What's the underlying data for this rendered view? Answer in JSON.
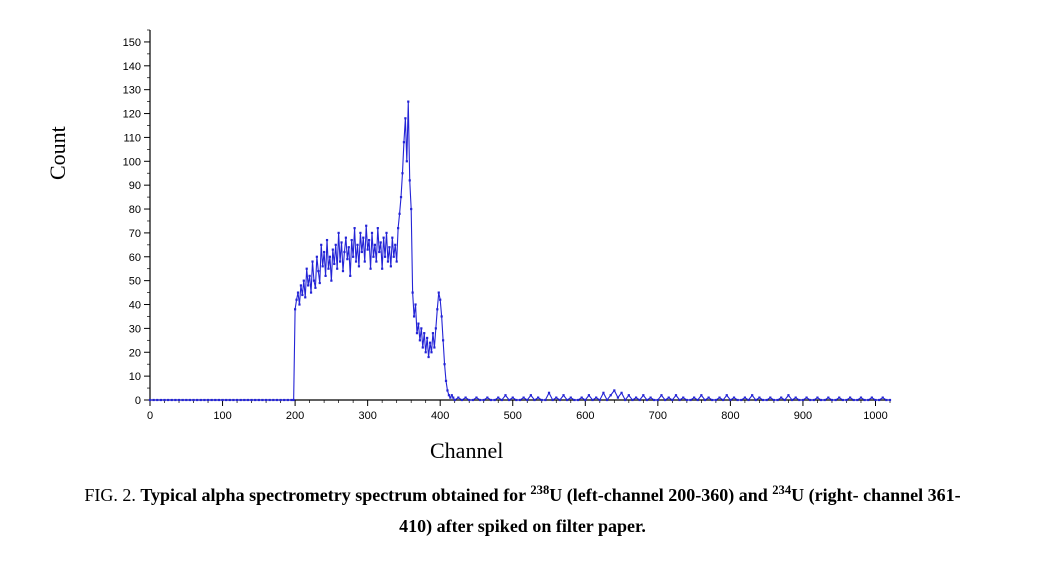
{
  "chart": {
    "type": "line-scatter",
    "xlabel": "Channel",
    "ylabel": "Count",
    "label_fontsize": 22,
    "xlim": [
      0,
      1020
    ],
    "ylim": [
      0,
      155
    ],
    "xtick_step": 100,
    "xticks": [
      0,
      100,
      200,
      300,
      400,
      500,
      600,
      700,
      800,
      900,
      1000
    ],
    "ytick_step": 10,
    "yticks": [
      0,
      10,
      20,
      30,
      40,
      50,
      60,
      70,
      80,
      90,
      100,
      110,
      120,
      130,
      140,
      150
    ],
    "tick_fontsize": 11,
    "minor_ticks_x": 5,
    "minor_ticks_y": 2,
    "line_color": "#2424d6",
    "marker_color": "#2424d6",
    "marker_size": 2.2,
    "line_width": 1.1,
    "axis_color": "#000000",
    "background_color": "#ffffff",
    "series": [
      {
        "x": 0,
        "y": 0
      },
      {
        "x": 5,
        "y": 0
      },
      {
        "x": 10,
        "y": 0
      },
      {
        "x": 15,
        "y": 0
      },
      {
        "x": 20,
        "y": 0
      },
      {
        "x": 25,
        "y": 0
      },
      {
        "x": 30,
        "y": 0
      },
      {
        "x": 35,
        "y": 0
      },
      {
        "x": 40,
        "y": 0
      },
      {
        "x": 45,
        "y": 0
      },
      {
        "x": 50,
        "y": 0
      },
      {
        "x": 55,
        "y": 0
      },
      {
        "x": 60,
        "y": 0
      },
      {
        "x": 65,
        "y": 0
      },
      {
        "x": 70,
        "y": 0
      },
      {
        "x": 75,
        "y": 0
      },
      {
        "x": 80,
        "y": 0
      },
      {
        "x": 85,
        "y": 0
      },
      {
        "x": 90,
        "y": 0
      },
      {
        "x": 95,
        "y": 0
      },
      {
        "x": 100,
        "y": 0
      },
      {
        "x": 105,
        "y": 0
      },
      {
        "x": 110,
        "y": 0
      },
      {
        "x": 115,
        "y": 0
      },
      {
        "x": 120,
        "y": 0
      },
      {
        "x": 125,
        "y": 0
      },
      {
        "x": 130,
        "y": 0
      },
      {
        "x": 135,
        "y": 0
      },
      {
        "x": 140,
        "y": 0
      },
      {
        "x": 145,
        "y": 0
      },
      {
        "x": 150,
        "y": 0
      },
      {
        "x": 155,
        "y": 0
      },
      {
        "x": 160,
        "y": 0
      },
      {
        "x": 165,
        "y": 0
      },
      {
        "x": 170,
        "y": 0
      },
      {
        "x": 175,
        "y": 0
      },
      {
        "x": 180,
        "y": 0
      },
      {
        "x": 185,
        "y": 0
      },
      {
        "x": 190,
        "y": 0
      },
      {
        "x": 195,
        "y": 0
      },
      {
        "x": 198,
        "y": 0
      },
      {
        "x": 200,
        "y": 38
      },
      {
        "x": 202,
        "y": 42
      },
      {
        "x": 204,
        "y": 45
      },
      {
        "x": 206,
        "y": 40
      },
      {
        "x": 208,
        "y": 48
      },
      {
        "x": 210,
        "y": 44
      },
      {
        "x": 212,
        "y": 50
      },
      {
        "x": 214,
        "y": 43
      },
      {
        "x": 216,
        "y": 55
      },
      {
        "x": 218,
        "y": 48
      },
      {
        "x": 220,
        "y": 52
      },
      {
        "x": 222,
        "y": 45
      },
      {
        "x": 224,
        "y": 58
      },
      {
        "x": 226,
        "y": 50
      },
      {
        "x": 228,
        "y": 47
      },
      {
        "x": 230,
        "y": 60
      },
      {
        "x": 232,
        "y": 54
      },
      {
        "x": 234,
        "y": 49
      },
      {
        "x": 236,
        "y": 65
      },
      {
        "x": 238,
        "y": 56
      },
      {
        "x": 240,
        "y": 62
      },
      {
        "x": 242,
        "y": 52
      },
      {
        "x": 244,
        "y": 67
      },
      {
        "x": 246,
        "y": 55
      },
      {
        "x": 248,
        "y": 60
      },
      {
        "x": 250,
        "y": 50
      },
      {
        "x": 252,
        "y": 63
      },
      {
        "x": 254,
        "y": 57
      },
      {
        "x": 256,
        "y": 65
      },
      {
        "x": 258,
        "y": 55
      },
      {
        "x": 260,
        "y": 70
      },
      {
        "x": 262,
        "y": 58
      },
      {
        "x": 264,
        "y": 66
      },
      {
        "x": 266,
        "y": 54
      },
      {
        "x": 268,
        "y": 62
      },
      {
        "x": 270,
        "y": 68
      },
      {
        "x": 272,
        "y": 59
      },
      {
        "x": 274,
        "y": 64
      },
      {
        "x": 276,
        "y": 52
      },
      {
        "x": 278,
        "y": 67
      },
      {
        "x": 280,
        "y": 60
      },
      {
        "x": 282,
        "y": 72
      },
      {
        "x": 284,
        "y": 58
      },
      {
        "x": 286,
        "y": 65
      },
      {
        "x": 288,
        "y": 56
      },
      {
        "x": 290,
        "y": 70
      },
      {
        "x": 292,
        "y": 62
      },
      {
        "x": 294,
        "y": 68
      },
      {
        "x": 296,
        "y": 58
      },
      {
        "x": 298,
        "y": 73
      },
      {
        "x": 300,
        "y": 63
      },
      {
        "x": 302,
        "y": 67
      },
      {
        "x": 304,
        "y": 55
      },
      {
        "x": 306,
        "y": 70
      },
      {
        "x": 308,
        "y": 60
      },
      {
        "x": 310,
        "y": 65
      },
      {
        "x": 312,
        "y": 58
      },
      {
        "x": 314,
        "y": 72
      },
      {
        "x": 316,
        "y": 62
      },
      {
        "x": 318,
        "y": 66
      },
      {
        "x": 320,
        "y": 55
      },
      {
        "x": 322,
        "y": 68
      },
      {
        "x": 324,
        "y": 60
      },
      {
        "x": 326,
        "y": 70
      },
      {
        "x": 328,
        "y": 58
      },
      {
        "x": 330,
        "y": 64
      },
      {
        "x": 332,
        "y": 56
      },
      {
        "x": 334,
        "y": 68
      },
      {
        "x": 336,
        "y": 60
      },
      {
        "x": 338,
        "y": 65
      },
      {
        "x": 340,
        "y": 58
      },
      {
        "x": 342,
        "y": 72
      },
      {
        "x": 344,
        "y": 78
      },
      {
        "x": 346,
        "y": 85
      },
      {
        "x": 348,
        "y": 95
      },
      {
        "x": 350,
        "y": 108
      },
      {
        "x": 352,
        "y": 118
      },
      {
        "x": 354,
        "y": 100
      },
      {
        "x": 356,
        "y": 125
      },
      {
        "x": 358,
        "y": 92
      },
      {
        "x": 360,
        "y": 80
      },
      {
        "x": 362,
        "y": 45
      },
      {
        "x": 364,
        "y": 35
      },
      {
        "x": 366,
        "y": 40
      },
      {
        "x": 368,
        "y": 28
      },
      {
        "x": 370,
        "y": 32
      },
      {
        "x": 372,
        "y": 25
      },
      {
        "x": 374,
        "y": 30
      },
      {
        "x": 376,
        "y": 22
      },
      {
        "x": 378,
        "y": 28
      },
      {
        "x": 380,
        "y": 20
      },
      {
        "x": 382,
        "y": 26
      },
      {
        "x": 384,
        "y": 18
      },
      {
        "x": 386,
        "y": 24
      },
      {
        "x": 388,
        "y": 20
      },
      {
        "x": 390,
        "y": 28
      },
      {
        "x": 392,
        "y": 22
      },
      {
        "x": 394,
        "y": 30
      },
      {
        "x": 396,
        "y": 38
      },
      {
        "x": 398,
        "y": 45
      },
      {
        "x": 400,
        "y": 42
      },
      {
        "x": 402,
        "y": 35
      },
      {
        "x": 404,
        "y": 25
      },
      {
        "x": 406,
        "y": 15
      },
      {
        "x": 408,
        "y": 8
      },
      {
        "x": 410,
        "y": 4
      },
      {
        "x": 412,
        "y": 2
      },
      {
        "x": 414,
        "y": 1
      },
      {
        "x": 416,
        "y": 2
      },
      {
        "x": 418,
        "y": 1
      },
      {
        "x": 420,
        "y": 0
      },
      {
        "x": 425,
        "y": 1
      },
      {
        "x": 430,
        "y": 0
      },
      {
        "x": 435,
        "y": 1
      },
      {
        "x": 440,
        "y": 0
      },
      {
        "x": 445,
        "y": 0
      },
      {
        "x": 450,
        "y": 1
      },
      {
        "x": 455,
        "y": 0
      },
      {
        "x": 460,
        "y": 0
      },
      {
        "x": 465,
        "y": 1
      },
      {
        "x": 470,
        "y": 0
      },
      {
        "x": 475,
        "y": 0
      },
      {
        "x": 480,
        "y": 1
      },
      {
        "x": 485,
        "y": 0
      },
      {
        "x": 490,
        "y": 2
      },
      {
        "x": 495,
        "y": 0
      },
      {
        "x": 500,
        "y": 1
      },
      {
        "x": 505,
        "y": 0
      },
      {
        "x": 510,
        "y": 0
      },
      {
        "x": 515,
        "y": 1
      },
      {
        "x": 520,
        "y": 0
      },
      {
        "x": 525,
        "y": 2
      },
      {
        "x": 530,
        "y": 0
      },
      {
        "x": 535,
        "y": 1
      },
      {
        "x": 540,
        "y": 0
      },
      {
        "x": 545,
        "y": 0
      },
      {
        "x": 550,
        "y": 3
      },
      {
        "x": 555,
        "y": 0
      },
      {
        "x": 560,
        "y": 1
      },
      {
        "x": 565,
        "y": 0
      },
      {
        "x": 570,
        "y": 2
      },
      {
        "x": 575,
        "y": 0
      },
      {
        "x": 580,
        "y": 1
      },
      {
        "x": 585,
        "y": 0
      },
      {
        "x": 590,
        "y": 0
      },
      {
        "x": 595,
        "y": 1
      },
      {
        "x": 600,
        "y": 0
      },
      {
        "x": 605,
        "y": 2
      },
      {
        "x": 610,
        "y": 0
      },
      {
        "x": 615,
        "y": 1
      },
      {
        "x": 620,
        "y": 0
      },
      {
        "x": 625,
        "y": 3
      },
      {
        "x": 630,
        "y": 0
      },
      {
        "x": 635,
        "y": 2
      },
      {
        "x": 640,
        "y": 4
      },
      {
        "x": 645,
        "y": 1
      },
      {
        "x": 650,
        "y": 3
      },
      {
        "x": 655,
        "y": 0
      },
      {
        "x": 660,
        "y": 2
      },
      {
        "x": 665,
        "y": 0
      },
      {
        "x": 670,
        "y": 1
      },
      {
        "x": 675,
        "y": 0
      },
      {
        "x": 680,
        "y": 2
      },
      {
        "x": 685,
        "y": 0
      },
      {
        "x": 690,
        "y": 1
      },
      {
        "x": 695,
        "y": 0
      },
      {
        "x": 700,
        "y": 0
      },
      {
        "x": 705,
        "y": 2
      },
      {
        "x": 710,
        "y": 0
      },
      {
        "x": 715,
        "y": 1
      },
      {
        "x": 720,
        "y": 0
      },
      {
        "x": 725,
        "y": 2
      },
      {
        "x": 730,
        "y": 0
      },
      {
        "x": 735,
        "y": 1
      },
      {
        "x": 740,
        "y": 0
      },
      {
        "x": 745,
        "y": 0
      },
      {
        "x": 750,
        "y": 1
      },
      {
        "x": 755,
        "y": 0
      },
      {
        "x": 760,
        "y": 2
      },
      {
        "x": 765,
        "y": 0
      },
      {
        "x": 770,
        "y": 1
      },
      {
        "x": 775,
        "y": 0
      },
      {
        "x": 780,
        "y": 0
      },
      {
        "x": 785,
        "y": 1
      },
      {
        "x": 790,
        "y": 0
      },
      {
        "x": 795,
        "y": 2
      },
      {
        "x": 800,
        "y": 0
      },
      {
        "x": 805,
        "y": 1
      },
      {
        "x": 810,
        "y": 0
      },
      {
        "x": 815,
        "y": 0
      },
      {
        "x": 820,
        "y": 1
      },
      {
        "x": 825,
        "y": 0
      },
      {
        "x": 830,
        "y": 2
      },
      {
        "x": 835,
        "y": 0
      },
      {
        "x": 840,
        "y": 1
      },
      {
        "x": 845,
        "y": 0
      },
      {
        "x": 850,
        "y": 0
      },
      {
        "x": 855,
        "y": 1
      },
      {
        "x": 860,
        "y": 0
      },
      {
        "x": 865,
        "y": 0
      },
      {
        "x": 870,
        "y": 1
      },
      {
        "x": 875,
        "y": 0
      },
      {
        "x": 880,
        "y": 2
      },
      {
        "x": 885,
        "y": 0
      },
      {
        "x": 890,
        "y": 1
      },
      {
        "x": 895,
        "y": 0
      },
      {
        "x": 900,
        "y": 0
      },
      {
        "x": 905,
        "y": 1
      },
      {
        "x": 910,
        "y": 0
      },
      {
        "x": 915,
        "y": 0
      },
      {
        "x": 920,
        "y": 1
      },
      {
        "x": 925,
        "y": 0
      },
      {
        "x": 930,
        "y": 0
      },
      {
        "x": 935,
        "y": 1
      },
      {
        "x": 940,
        "y": 0
      },
      {
        "x": 945,
        "y": 0
      },
      {
        "x": 950,
        "y": 1
      },
      {
        "x": 955,
        "y": 0
      },
      {
        "x": 960,
        "y": 0
      },
      {
        "x": 965,
        "y": 1
      },
      {
        "x": 970,
        "y": 0
      },
      {
        "x": 975,
        "y": 0
      },
      {
        "x": 980,
        "y": 1
      },
      {
        "x": 985,
        "y": 0
      },
      {
        "x": 990,
        "y": 0
      },
      {
        "x": 995,
        "y": 1
      },
      {
        "x": 1000,
        "y": 0
      },
      {
        "x": 1005,
        "y": 0
      },
      {
        "x": 1010,
        "y": 1
      },
      {
        "x": 1015,
        "y": 0
      },
      {
        "x": 1020,
        "y": 0
      }
    ]
  },
  "caption": {
    "fig_prefix": "FIG. 2. ",
    "line1_a": "Typical alpha spectrometry spectrum obtained for ",
    "isotope1_sup": "238",
    "isotope1": "U",
    "line1_b": " (left-channel 200-360) and ",
    "isotope2_sup": "234",
    "isotope2": "U",
    "line1_c": " (right- channel 361-",
    "line2": "410) after spiked on filter paper."
  }
}
